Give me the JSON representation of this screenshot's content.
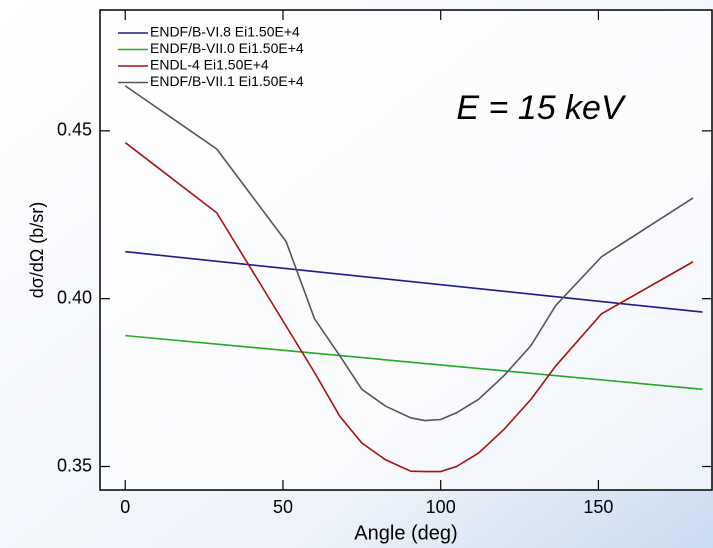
{
  "chart_data": {
    "type": "line",
    "annotation": "E = 15 keV",
    "xlabel": "Angle (deg)",
    "ylabel": "dσ/dΩ (b/sr)",
    "xlim": [
      -8,
      186
    ],
    "xticks": [
      0,
      50,
      100,
      150
    ],
    "ylim": [
      0.343,
      0.486
    ],
    "yticks": [
      0.35,
      {
        "value": 0.4,
        "label": "0.40"
      },
      0.45
    ],
    "legend": "upper left",
    "series": [
      {
        "name": "ENDF/B-VI.8 Ei1.50E+4",
        "color": "#1a1a8c",
        "x": [
          0,
          183
        ],
        "values": [
          0.414,
          0.396
        ]
      },
      {
        "name": "ENDF/B-VII.0 Ei1.50E+4",
        "color": "#22aa22",
        "x": [
          0,
          183
        ],
        "values": [
          0.389,
          0.373
        ]
      },
      {
        "name": "ENDL-4 Ei1.50E+4",
        "color": "#aa1111",
        "x": [
          0,
          29,
          60,
          68,
          75,
          82.5,
          90.5,
          95,
          100,
          105,
          112,
          120,
          128.6,
          136.5,
          151,
          180
        ],
        "values": [
          0.4465,
          0.4256,
          0.378,
          0.365,
          0.357,
          0.352,
          0.3486,
          0.3485,
          0.3485,
          0.35,
          0.354,
          0.361,
          0.37,
          0.38,
          0.3955,
          0.411
        ]
      },
      {
        "name": "ENDF/B-VII.1 Ei1.50E+4",
        "color": "#555555",
        "x": [
          0,
          29,
          51,
          60,
          68,
          75,
          82.5,
          90.5,
          95,
          100,
          105,
          112,
          120,
          128.6,
          136.5,
          151,
          180
        ],
        "values": [
          0.4634,
          0.4446,
          0.417,
          0.394,
          0.383,
          0.373,
          0.368,
          0.3645,
          0.3637,
          0.364,
          0.366,
          0.37,
          0.377,
          0.386,
          0.398,
          0.4125,
          0.43
        ]
      }
    ]
  }
}
